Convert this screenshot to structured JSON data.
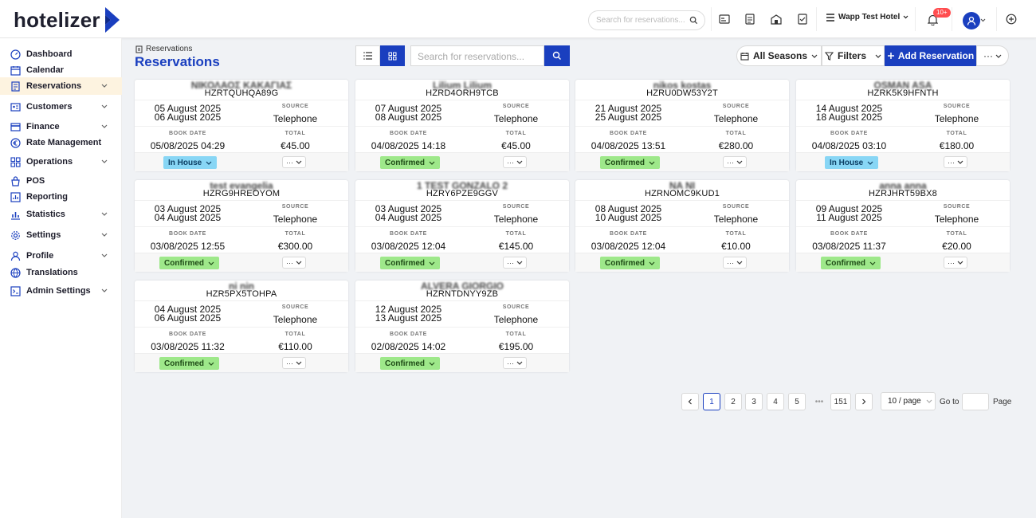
{
  "header": {
    "brand": "hotelizer",
    "search_placeholder": "Search for reservations...",
    "hotel_name": "Wapp Test Hotel",
    "notif_badge": "10+"
  },
  "sidebar": {
    "items": [
      {
        "label": "Dashboard",
        "icon": "dashboard-icon",
        "expand": false
      },
      {
        "label": "Calendar",
        "icon": "calendar-icon",
        "expand": false
      },
      {
        "label": "Reservations",
        "icon": "document-icon",
        "expand": true
      },
      {
        "label": "Customers",
        "icon": "id-card-icon",
        "expand": true
      },
      {
        "label": "Finance",
        "icon": "credit-card-icon",
        "expand": true
      },
      {
        "label": "Rate Management",
        "icon": "euro-icon",
        "expand": false
      },
      {
        "label": "Operations",
        "icon": "grid-icon",
        "expand": true
      },
      {
        "label": "POS",
        "icon": "pos-icon",
        "expand": false
      },
      {
        "label": "Reporting",
        "icon": "report-icon",
        "expand": false
      },
      {
        "label": "Statistics",
        "icon": "bar-chart-icon",
        "expand": true
      },
      {
        "label": "Settings",
        "icon": "gear-icon",
        "expand": true
      },
      {
        "label": "Profile",
        "icon": "user-icon",
        "expand": true
      },
      {
        "label": "Translations",
        "icon": "globe-icon",
        "expand": false
      },
      {
        "label": "Admin Settings",
        "icon": "admin-icon",
        "expand": true
      }
    ]
  },
  "main": {
    "breadcrumb": "Reservations",
    "title": "Reservations",
    "search_placeholder": "Search for reservations...",
    "seasons_label": "All Seasons",
    "filters_label": "Filters",
    "add_label": "Add Reservation",
    "more_label": "···"
  },
  "labels": {
    "source": "SOURCE",
    "total": "TOTAL",
    "book_date": "BOOK DATE"
  },
  "cards": [
    {
      "name": "ΝΙΚΟΛΑΟΣ ΚΑΚΑΓΙΑΣ",
      "code": "HZRTQUHQA89G",
      "arrive": "05 August 2025",
      "depart": "06 August 2025",
      "source": "Telephone",
      "book_date": "05/08/2025 04:29",
      "total": "€45.00",
      "status": "In House"
    },
    {
      "name": "Lilium Lilium",
      "code": "HZRD4ORH9TCB",
      "arrive": "07 August 2025",
      "depart": "08 August 2025",
      "source": "Telephone",
      "book_date": "04/08/2025 14:18",
      "total": "€45.00",
      "status": "Confirmed"
    },
    {
      "name": "nikos kostas",
      "code": "HZRU0DW53Y2T",
      "arrive": "21 August 2025",
      "depart": "25 August 2025",
      "source": "Telephone",
      "book_date": "04/08/2025 13:51",
      "total": "€280.00",
      "status": "Confirmed"
    },
    {
      "name": "OSMAN ASA",
      "code": "HZRK5K9HFNTH",
      "arrive": "14 August 2025",
      "depart": "18 August 2025",
      "source": "Telephone",
      "book_date": "04/08/2025 03:10",
      "total": "€180.00",
      "status": "In House"
    },
    {
      "name": "test evangelia",
      "code": "HZRG9HREOYOM",
      "arrive": "03 August 2025",
      "depart": "04 August 2025",
      "source": "Telephone",
      "book_date": "03/08/2025 12:55",
      "total": "€300.00",
      "status": "Confirmed"
    },
    {
      "name": "1 TEST GONZALO 2",
      "code": "HZRY6PZE9GGV",
      "arrive": "03 August 2025",
      "depart": "04 August 2025",
      "source": "Telephone",
      "book_date": "03/08/2025 12:04",
      "total": "€145.00",
      "status": "Confirmed"
    },
    {
      "name": "NA NI",
      "code": "HZRNOMC9KUD1",
      "arrive": "08 August 2025",
      "depart": "10 August 2025",
      "source": "Telephone",
      "book_date": "03/08/2025 12:04",
      "total": "€10.00",
      "status": "Confirmed"
    },
    {
      "name": "anna anna",
      "code": "HZRJHRT59BX8",
      "arrive": "09 August 2025",
      "depart": "11 August 2025",
      "source": "Telephone",
      "book_date": "03/08/2025 11:37",
      "total": "€20.00",
      "status": "Confirmed"
    },
    {
      "name": "ni nin",
      "code": "HZR5PX5TOHPA",
      "arrive": "04 August 2025",
      "depart": "06 August 2025",
      "source": "Telephone",
      "book_date": "03/08/2025 11:32",
      "total": "€110.00",
      "status": "Confirmed"
    },
    {
      "name": "ALVERA GIORGIO",
      "code": "HZRNTDNYY9ZB",
      "arrive": "12 August 2025",
      "depart": "13 August 2025",
      "source": "Telephone",
      "book_date": "02/08/2025 14:02",
      "total": "€195.00",
      "status": "Confirmed"
    }
  ],
  "pagination": {
    "pages": [
      "1",
      "2",
      "3",
      "4",
      "5",
      "•••",
      "151"
    ],
    "current": "1",
    "page_size": "10 / page",
    "goto_label": "Go to",
    "page_label": "Page"
  },
  "colors": {
    "primary": "#1a3fbf",
    "confirmed": "#9ee88a",
    "in_house": "#88d6f5",
    "active_menu_bg": "#fdf3e0"
  }
}
